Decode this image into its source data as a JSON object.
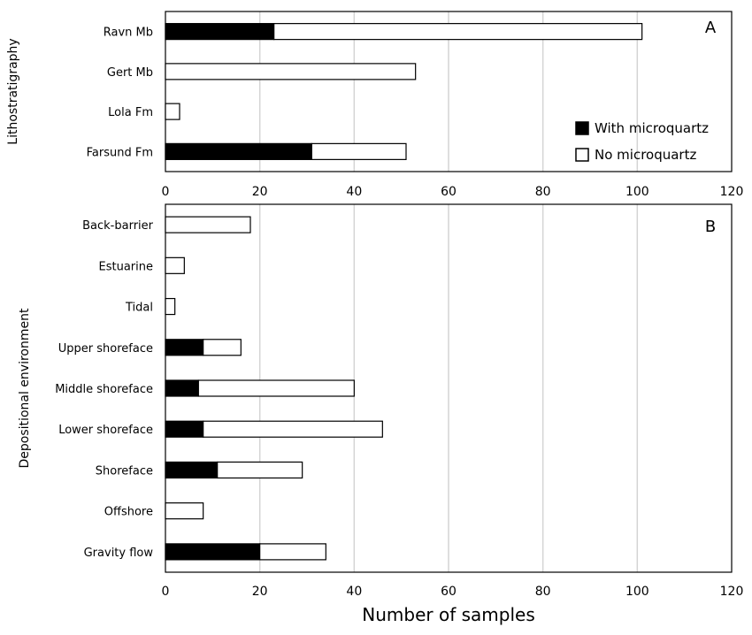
{
  "chart_data": [
    {
      "type": "bar",
      "orientation": "horizontal",
      "stacked": true,
      "panel_label": "A",
      "ylabel": "Lithostratigraphy",
      "categories": [
        "Ravn Mb",
        "Gert Mb",
        "Lola Fm",
        "Farsund Fm"
      ],
      "series": [
        {
          "name": "With microquartz",
          "color": "#000000",
          "values": [
            23,
            0,
            0,
            31
          ]
        },
        {
          "name": "No microquartz",
          "color": "#ffffff",
          "values": [
            78,
            53,
            3,
            20
          ]
        }
      ],
      "xlim": [
        0,
        120
      ],
      "xticks": [
        "0",
        "20",
        "40",
        "60",
        "80",
        "100",
        "120"
      ],
      "grid": "vertical",
      "legend": "right"
    },
    {
      "type": "bar",
      "orientation": "horizontal",
      "stacked": true,
      "panel_label": "B",
      "ylabel": "Depositional environment",
      "xlabel": "Number of samples",
      "categories": [
        "Back-barrier",
        "Estuarine",
        "Tidal",
        "Upper shoreface",
        "Middle shoreface",
        "Lower shoreface",
        "Shoreface",
        "Offshore",
        "Gravity flow"
      ],
      "series": [
        {
          "name": "With microquartz",
          "color": "#000000",
          "values": [
            0,
            0,
            0,
            8,
            7,
            8,
            11,
            0,
            20
          ]
        },
        {
          "name": "No microquartz",
          "color": "#ffffff",
          "values": [
            18,
            4,
            2,
            8,
            33,
            38,
            18,
            8,
            14
          ]
        }
      ],
      "xlim": [
        0,
        120
      ],
      "xticks": [
        "0",
        "20",
        "40",
        "60",
        "80",
        "100",
        "120"
      ],
      "grid": "vertical"
    }
  ]
}
